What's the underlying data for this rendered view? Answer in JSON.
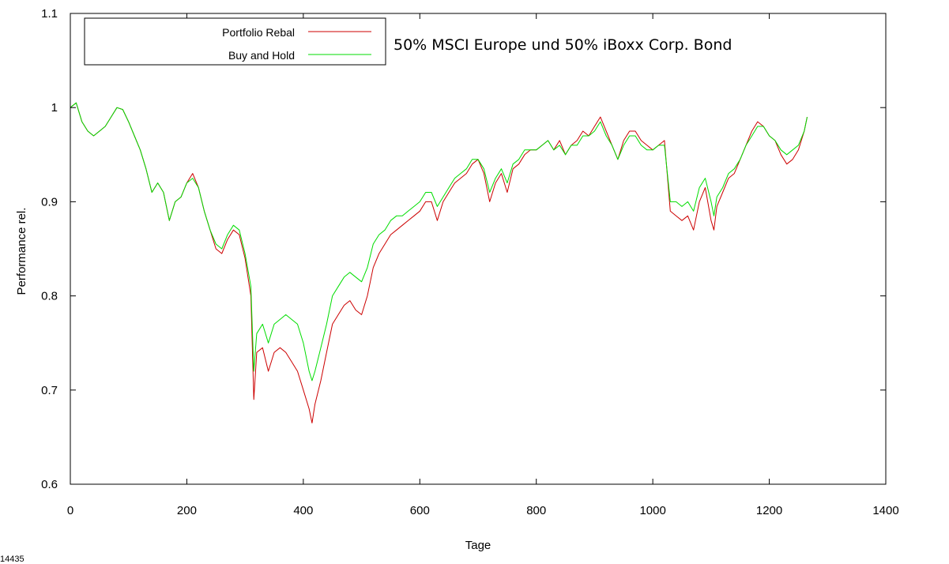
{
  "chart_data": {
    "type": "line",
    "title": "50% MSCI Europe und 50% iBoxx Corp. Bond",
    "xlabel": "Tage",
    "ylabel": "Performance rel.",
    "xlim": [
      0,
      1400
    ],
    "ylim": [
      0.6,
      1.1
    ],
    "xticks": [
      "0",
      "200",
      "400",
      "600",
      "800",
      "1000",
      "1200",
      "1400"
    ],
    "yticks": [
      "1.1",
      "1",
      "0.9",
      "0.8",
      "0.7",
      "0.6"
    ],
    "grid": false,
    "legend_position": "top-left",
    "corner_note": "14435",
    "series": [
      {
        "name": "Portfolio Rebal",
        "color": "#cc0000",
        "x": [
          0,
          10,
          20,
          30,
          40,
          50,
          60,
          70,
          80,
          90,
          100,
          110,
          120,
          130,
          140,
          150,
          160,
          170,
          180,
          190,
          200,
          210,
          220,
          230,
          240,
          250,
          260,
          270,
          280,
          290,
          300,
          310,
          315,
          320,
          330,
          340,
          350,
          360,
          370,
          380,
          390,
          400,
          410,
          415,
          420,
          430,
          440,
          450,
          460,
          470,
          480,
          490,
          500,
          510,
          520,
          530,
          540,
          550,
          560,
          570,
          580,
          590,
          600,
          610,
          620,
          630,
          640,
          650,
          660,
          670,
          680,
          690,
          700,
          710,
          720,
          730,
          740,
          750,
          760,
          770,
          780,
          790,
          800,
          810,
          820,
          830,
          840,
          850,
          860,
          870,
          880,
          890,
          900,
          910,
          920,
          930,
          940,
          950,
          960,
          970,
          980,
          990,
          1000,
          1010,
          1020,
          1030,
          1040,
          1050,
          1060,
          1070,
          1080,
          1090,
          1100,
          1105,
          1110,
          1120,
          1130,
          1140,
          1150,
          1160,
          1170,
          1180,
          1190,
          1200,
          1210,
          1220,
          1230,
          1240,
          1250,
          1260,
          1265
        ],
        "values": [
          1.0,
          1.005,
          0.985,
          0.975,
          0.97,
          0.975,
          0.98,
          0.99,
          1.0,
          0.998,
          0.985,
          0.97,
          0.955,
          0.935,
          0.91,
          0.92,
          0.91,
          0.88,
          0.9,
          0.905,
          0.92,
          0.93,
          0.915,
          0.89,
          0.87,
          0.85,
          0.845,
          0.86,
          0.87,
          0.865,
          0.84,
          0.8,
          0.69,
          0.74,
          0.745,
          0.72,
          0.74,
          0.745,
          0.74,
          0.73,
          0.72,
          0.7,
          0.68,
          0.665,
          0.685,
          0.71,
          0.74,
          0.77,
          0.78,
          0.79,
          0.795,
          0.785,
          0.78,
          0.8,
          0.83,
          0.845,
          0.855,
          0.865,
          0.87,
          0.875,
          0.88,
          0.885,
          0.89,
          0.9,
          0.9,
          0.88,
          0.9,
          0.91,
          0.92,
          0.925,
          0.93,
          0.94,
          0.945,
          0.93,
          0.9,
          0.92,
          0.93,
          0.91,
          0.935,
          0.94,
          0.95,
          0.955,
          0.955,
          0.96,
          0.965,
          0.955,
          0.965,
          0.95,
          0.96,
          0.965,
          0.975,
          0.97,
          0.98,
          0.99,
          0.975,
          0.96,
          0.945,
          0.965,
          0.975,
          0.975,
          0.965,
          0.96,
          0.955,
          0.96,
          0.965,
          0.89,
          0.885,
          0.88,
          0.885,
          0.87,
          0.9,
          0.915,
          0.88,
          0.87,
          0.895,
          0.91,
          0.925,
          0.93,
          0.945,
          0.96,
          0.975,
          0.985,
          0.98,
          0.97,
          0.965,
          0.95,
          0.94,
          0.945,
          0.955,
          0.975,
          0.99
        ]
      },
      {
        "name": "Buy and Hold",
        "color": "#00dd00",
        "x": [
          0,
          10,
          20,
          30,
          40,
          50,
          60,
          70,
          80,
          90,
          100,
          110,
          120,
          130,
          140,
          150,
          160,
          170,
          180,
          190,
          200,
          210,
          220,
          230,
          240,
          250,
          260,
          270,
          280,
          290,
          300,
          310,
          315,
          320,
          330,
          340,
          350,
          360,
          370,
          380,
          390,
          400,
          410,
          415,
          420,
          430,
          440,
          450,
          460,
          470,
          480,
          490,
          500,
          510,
          520,
          530,
          540,
          550,
          560,
          570,
          580,
          590,
          600,
          610,
          620,
          630,
          640,
          650,
          660,
          670,
          680,
          690,
          700,
          710,
          720,
          730,
          740,
          750,
          760,
          770,
          780,
          790,
          800,
          810,
          820,
          830,
          840,
          850,
          860,
          870,
          880,
          890,
          900,
          910,
          920,
          930,
          940,
          950,
          960,
          970,
          980,
          990,
          1000,
          1010,
          1020,
          1030,
          1040,
          1050,
          1060,
          1070,
          1080,
          1090,
          1100,
          1105,
          1110,
          1120,
          1130,
          1140,
          1150,
          1160,
          1170,
          1180,
          1190,
          1200,
          1210,
          1220,
          1230,
          1240,
          1250,
          1260,
          1265
        ],
        "values": [
          1.0,
          1.005,
          0.985,
          0.975,
          0.97,
          0.975,
          0.98,
          0.99,
          1.0,
          0.998,
          0.985,
          0.97,
          0.955,
          0.935,
          0.91,
          0.92,
          0.91,
          0.88,
          0.9,
          0.905,
          0.92,
          0.925,
          0.915,
          0.89,
          0.87,
          0.855,
          0.85,
          0.865,
          0.875,
          0.87,
          0.845,
          0.81,
          0.72,
          0.76,
          0.77,
          0.75,
          0.77,
          0.775,
          0.78,
          0.775,
          0.77,
          0.75,
          0.72,
          0.71,
          0.72,
          0.745,
          0.77,
          0.8,
          0.81,
          0.82,
          0.825,
          0.82,
          0.815,
          0.83,
          0.855,
          0.865,
          0.87,
          0.88,
          0.885,
          0.885,
          0.89,
          0.895,
          0.9,
          0.91,
          0.91,
          0.895,
          0.905,
          0.915,
          0.925,
          0.93,
          0.935,
          0.945,
          0.945,
          0.935,
          0.91,
          0.925,
          0.935,
          0.92,
          0.94,
          0.945,
          0.955,
          0.955,
          0.955,
          0.96,
          0.965,
          0.955,
          0.96,
          0.95,
          0.96,
          0.96,
          0.97,
          0.97,
          0.975,
          0.985,
          0.97,
          0.96,
          0.945,
          0.96,
          0.97,
          0.97,
          0.96,
          0.955,
          0.955,
          0.96,
          0.96,
          0.9,
          0.9,
          0.895,
          0.9,
          0.89,
          0.915,
          0.925,
          0.9,
          0.885,
          0.905,
          0.915,
          0.93,
          0.935,
          0.945,
          0.96,
          0.97,
          0.98,
          0.98,
          0.97,
          0.965,
          0.955,
          0.95,
          0.955,
          0.96,
          0.975,
          0.99
        ]
      }
    ]
  }
}
